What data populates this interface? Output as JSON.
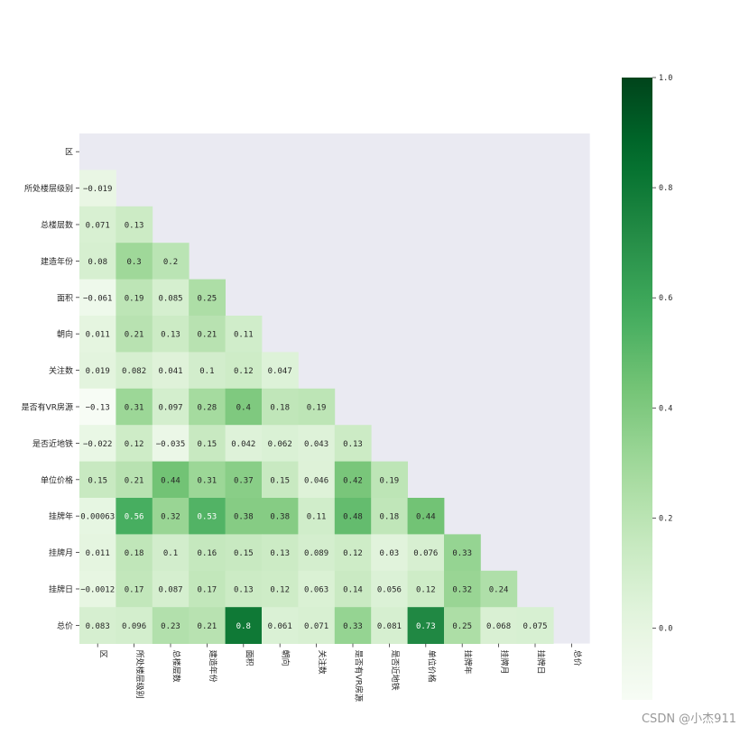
{
  "chart_data": {
    "type": "heatmap",
    "title": "",
    "xlabel": "",
    "ylabel": "",
    "labels": [
      "区",
      "所处楼层级别",
      "总楼层数",
      "建造年份",
      "面积",
      "朝向",
      "关注数",
      "是否有VR房源",
      "是否近地铁",
      "单位价格",
      "挂牌年",
      "挂牌月",
      "挂牌日",
      "总价"
    ],
    "matrix": [
      [],
      [
        "-0.019"
      ],
      [
        "0.071",
        "0.13"
      ],
      [
        "0.08",
        "0.3",
        "0.2"
      ],
      [
        "-0.061",
        "0.19",
        "0.085",
        "0.25"
      ],
      [
        "0.011",
        "0.21",
        "0.13",
        "0.21",
        "0.11"
      ],
      [
        "0.019",
        "0.082",
        "0.041",
        "0.1",
        "0.12",
        "0.047"
      ],
      [
        "-0.13",
        "0.31",
        "0.097",
        "0.28",
        "0.4",
        "0.18",
        "0.19"
      ],
      [
        "-0.022",
        "0.12",
        "-0.035",
        "0.15",
        "0.042",
        "0.062",
        "0.043",
        "0.13"
      ],
      [
        "0.15",
        "0.21",
        "0.44",
        "0.31",
        "0.37",
        "0.15",
        "0.046",
        "0.42",
        "0.19"
      ],
      [
        "0.00063",
        "0.56",
        "0.32",
        "0.53",
        "0.38",
        "0.38",
        "0.11",
        "0.48",
        "0.18",
        "0.44"
      ],
      [
        "0.011",
        "0.18",
        "0.1",
        "0.16",
        "0.15",
        "0.13",
        "0.089",
        "0.12",
        "0.03",
        "0.076",
        "0.33"
      ],
      [
        "-0.0012",
        "0.17",
        "0.087",
        "0.17",
        "0.13",
        "0.12",
        "0.063",
        "0.14",
        "0.056",
        "0.12",
        "0.32",
        "0.24"
      ],
      [
        "0.083",
        "0.096",
        "0.23",
        "0.21",
        "0.8",
        "0.061",
        "0.071",
        "0.33",
        "0.081",
        "0.73",
        "0.25",
        "0.068",
        "0.075"
      ]
    ],
    "mask": "upper-triangle",
    "colormap": "Greens",
    "colorbar": {
      "min": -0.13,
      "max": 1.0,
      "ticks": [
        "0.0",
        "0.2",
        "0.4",
        "0.6",
        "0.8",
        "1.0"
      ]
    },
    "background_color": "#eaeaf2"
  },
  "watermark": "CSDN @小杰911"
}
